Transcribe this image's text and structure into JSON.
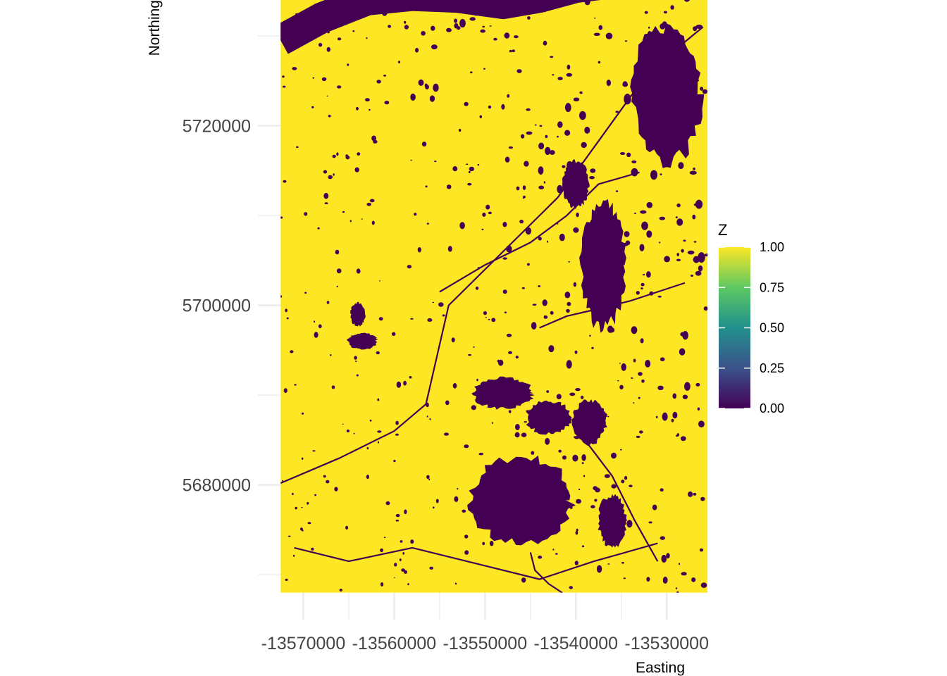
{
  "chart_data": {
    "type": "heatmap",
    "title": "",
    "xlabel": "Easting",
    "ylabel": "Northing",
    "x_ticks": [
      -13570000,
      -13560000,
      -13550000,
      -13540000,
      -13530000
    ],
    "x_tick_labels": [
      "-13570000",
      "-13560000",
      "-13550000",
      "-13540000",
      "-13530000"
    ],
    "y_ticks": [
      5680000,
      5700000,
      5720000
    ],
    "y_tick_labels": [
      "5680000",
      "5700000",
      "5720000"
    ],
    "xlim": [
      -13575000,
      -13528000
    ],
    "ylim": [
      5665000,
      5734000
    ],
    "raster_extent": {
      "xmin": -13572500,
      "xmax": -13525500,
      "ymin": 5668000,
      "ymax": 5737000
    },
    "grid": true,
    "legend": {
      "title": "Z",
      "placement": "right",
      "values": [
        0.0,
        0.25,
        0.5,
        0.75,
        1.0
      ],
      "labels": [
        "0.00",
        "0.25",
        "0.50",
        "0.75",
        "1.00"
      ],
      "colormap": "viridis",
      "colors": [
        "#440154",
        "#3B528B",
        "#21908C",
        "#5DC863",
        "#FDE725"
      ]
    },
    "colors": {
      "low": "#440154",
      "high": "#FDE725",
      "grid": "#EBEBEB"
    },
    "features": [
      {
        "type": "blob",
        "x": -13546000,
        "y": 5678300,
        "rx": 5500,
        "ry": 4800
      },
      {
        "type": "blob",
        "x": -13536000,
        "y": 5676000,
        "rx": 1500,
        "ry": 2900
      },
      {
        "type": "blob",
        "x": -13548000,
        "y": 5690200,
        "rx": 3200,
        "ry": 1700
      },
      {
        "type": "blob",
        "x": -13543000,
        "y": 5687500,
        "rx": 2500,
        "ry": 1800
      },
      {
        "type": "blob",
        "x": -13538500,
        "y": 5687000,
        "rx": 1800,
        "ry": 2400
      },
      {
        "type": "blob",
        "x": -13537000,
        "y": 5704500,
        "rx": 2400,
        "ry": 7000
      },
      {
        "type": "blob",
        "x": -13530000,
        "y": 5723500,
        "rx": 3800,
        "ry": 7500
      },
      {
        "type": "blob",
        "x": -13540000,
        "y": 5713500,
        "rx": 1400,
        "ry": 2600
      },
      {
        "type": "blob",
        "x": -13563500,
        "y": 5696000,
        "rx": 1600,
        "ry": 900
      },
      {
        "type": "blob",
        "x": -13564000,
        "y": 5699000,
        "rx": 800,
        "ry": 1300
      }
    ],
    "river": {
      "x": [
        -13572500,
        -13568000,
        -13563000,
        -13558000,
        -13553000,
        -13548000,
        -13544000,
        -13540000,
        -13536000,
        -13532000,
        -13528000,
        -13525500
      ],
      "y": [
        5729500,
        5732000,
        5734000,
        5734500,
        5734300,
        5733600,
        5734300,
        5735400,
        5735900,
        5736300,
        5736600,
        5736800
      ]
    },
    "channels": [
      {
        "x": [
          -13572500,
          -13566000,
          -13560000,
          -13556500,
          -13554000,
          -13548000,
          -13542000,
          -13537000,
          -13532000,
          -13526000
        ],
        "y": [
          5680200,
          5683000,
          5686000,
          5689000,
          5700000,
          5706000,
          5712000,
          5719000,
          5726000,
          5731000
        ]
      },
      {
        "x": [
          -13571000,
          -13565000,
          -13558000,
          -13550000,
          -13544000,
          -13538000,
          -13531000
        ],
        "y": [
          5673000,
          5671500,
          5673000,
          5671000,
          5669500,
          5671500,
          5673500
        ]
      },
      {
        "x": [
          -13555000,
          -13550000,
          -13545000,
          -13541000,
          -13537500,
          -13533000
        ],
        "y": [
          5701500,
          5704500,
          5707000,
          5710000,
          5713500,
          5714800
        ]
      },
      {
        "x": [
          -13544000,
          -13541000,
          -13538000,
          -13534000,
          -13528000
        ],
        "y": [
          5697500,
          5698800,
          5699500,
          5700500,
          5702500
        ]
      },
      {
        "x": [
          -13539000,
          -13536000,
          -13533500,
          -13531000
        ],
        "y": [
          5685000,
          5681000,
          5676000,
          5671500
        ]
      },
      {
        "x": [
          -13545000,
          -13544500,
          -13543000,
          -13541500
        ],
        "y": [
          5672500,
          5670500,
          5669000,
          5668000
        ]
      }
    ],
    "seed": 7
  }
}
